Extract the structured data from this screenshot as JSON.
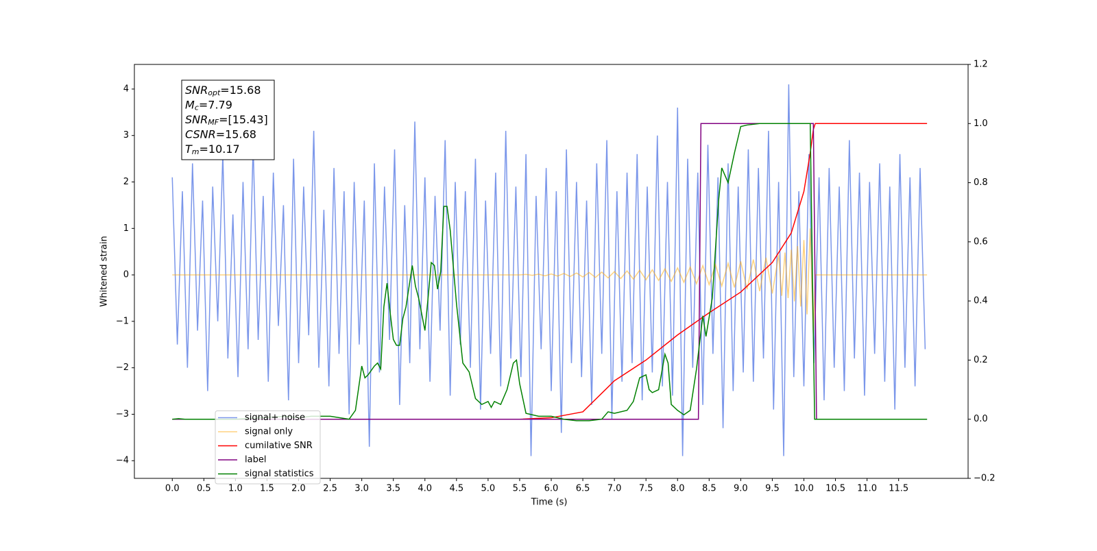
{
  "chart_data": {
    "type": "line",
    "xlabel": "Time (s)",
    "ylabel": "Whitened strain",
    "xlim": [
      -0.6,
      12.6
    ],
    "ylim": [
      -4.38,
      4.53
    ],
    "y2lim": [
      -0.2,
      1.2
    ],
    "xticks": [
      {
        "value": 0,
        "label": "0.0"
      },
      {
        "value": 0.5,
        "label": "0.5"
      },
      {
        "value": 1,
        "label": "1.0"
      },
      {
        "value": 1.5,
        "label": "1.5"
      },
      {
        "value": 2,
        "label": "2.0"
      },
      {
        "value": 2.5,
        "label": "2.5"
      },
      {
        "value": 3,
        "label": "3.0"
      },
      {
        "value": 3.5,
        "label": "3.5"
      },
      {
        "value": 4,
        "label": "4.0"
      },
      {
        "value": 4.5,
        "label": "4.5"
      },
      {
        "value": 5,
        "label": "5.0"
      },
      {
        "value": 5.5,
        "label": "5.5"
      },
      {
        "value": 6,
        "label": "6.0"
      },
      {
        "value": 6.5,
        "label": "6.5"
      },
      {
        "value": 7,
        "label": "7.0"
      },
      {
        "value": 7.5,
        "label": "7.5"
      },
      {
        "value": 8,
        "label": "8.0"
      },
      {
        "value": 8.5,
        "label": "8.5"
      },
      {
        "value": 9,
        "label": "9.0"
      },
      {
        "value": 9.5,
        "label": "9.5"
      },
      {
        "value": 10,
        "label": "10.0"
      },
      {
        "value": 10.5,
        "label": "10.5"
      },
      {
        "value": 11,
        "label": "11.0"
      },
      {
        "value": 11.5,
        "label": "11.5"
      }
    ],
    "yticks": [
      {
        "value": -4,
        "label": "−4"
      },
      {
        "value": -3,
        "label": "−3"
      },
      {
        "value": -2,
        "label": "−2"
      },
      {
        "value": -1,
        "label": "−1"
      },
      0,
      1,
      2,
      3,
      4
    ],
    "y2ticks": [
      {
        "value": -0.2,
        "label": "−0.2"
      },
      {
        "value": 0,
        "label": "0.0"
      },
      {
        "value": 0.2,
        "label": "0.2"
      },
      {
        "value": 0.4,
        "label": "0.4"
      },
      {
        "value": 0.6,
        "label": "0.6"
      },
      {
        "value": 0.8,
        "label": "0.8"
      },
      {
        "value": 1,
        "label": "1.0"
      },
      {
        "value": 1.2,
        "label": "1.2"
      }
    ],
    "legend": "lower left",
    "annotation": [
      {
        "text": "SNR",
        "sub": "opt",
        "rest": "=15.68"
      },
      {
        "text": "M",
        "sub": "c",
        "rest": "=7.79"
      },
      {
        "text": "SNR",
        "sub": "MF",
        "rest": "=[15.43]"
      },
      {
        "text": "CSNR",
        "sub": null,
        "rest": "=15.68"
      },
      {
        "text": "T",
        "sub": "m",
        "rest": "=10.17"
      }
    ],
    "series": [
      {
        "name": "signal+ noise",
        "color": "#4169e1",
        "alpha": 0.7,
        "x": [
          0,
          0.08,
          0.16,
          0.24,
          0.32,
          0.4,
          0.48,
          0.56,
          0.64,
          0.72,
          0.8,
          0.88,
          0.96,
          1.04,
          1.12,
          1.2,
          1.28,
          1.36,
          1.44,
          1.52,
          1.6,
          1.68,
          1.76,
          1.84,
          1.92,
          2,
          2.08,
          2.16,
          2.24,
          2.32,
          2.4,
          2.48,
          2.56,
          2.64,
          2.72,
          2.8,
          2.88,
          2.96,
          3.04,
          3.12,
          3.2,
          3.28,
          3.36,
          3.44,
          3.52,
          3.6,
          3.68,
          3.76,
          3.84,
          3.92,
          4,
          4.08,
          4.16,
          4.24,
          4.32,
          4.4,
          4.48,
          4.56,
          4.64,
          4.72,
          4.8,
          4.88,
          4.96,
          5.04,
          5.12,
          5.2,
          5.28,
          5.36,
          5.44,
          5.52,
          5.6,
          5.68,
          5.76,
          5.84,
          5.92,
          6,
          6.08,
          6.16,
          6.24,
          6.32,
          6.4,
          6.48,
          6.56,
          6.64,
          6.72,
          6.8,
          6.88,
          6.96,
          7.04,
          7.12,
          7.2,
          7.28,
          7.36,
          7.44,
          7.52,
          7.6,
          7.68,
          7.76,
          7.84,
          7.92,
          8,
          8.08,
          8.16,
          8.24,
          8.32,
          8.4,
          8.48,
          8.56,
          8.64,
          8.72,
          8.8,
          8.88,
          8.96,
          9.04,
          9.12,
          9.2,
          9.28,
          9.36,
          9.44,
          9.52,
          9.6,
          9.68,
          9.76,
          9.84,
          9.92,
          10,
          10.08,
          10.16,
          10.24,
          10.32,
          10.4,
          10.48,
          10.56,
          10.64,
          10.72,
          10.8,
          10.88,
          10.96,
          11.04,
          11.12,
          11.2,
          11.28,
          11.36,
          11.44,
          11.52,
          11.6,
          11.68,
          11.76,
          11.84,
          11.92
        ],
        "values": [
          2.1,
          -1.5,
          1.8,
          -2.0,
          2.4,
          -1.2,
          1.6,
          -2.5,
          1.9,
          -1.0,
          2.6,
          -1.8,
          1.3,
          -2.2,
          2.0,
          -1.6,
          2.8,
          -1.4,
          1.7,
          -2.3,
          2.2,
          -1.1,
          1.5,
          -2.7,
          2.5,
          -1.9,
          1.9,
          -1.3,
          3.1,
          -2.0,
          1.4,
          -2.4,
          2.3,
          -1.7,
          1.8,
          -3.0,
          2.0,
          -1.5,
          1.6,
          -3.7,
          2.4,
          -2.1,
          1.9,
          -1.4,
          2.7,
          -2.8,
          1.5,
          -1.9,
          3.3,
          -1.6,
          2.1,
          -2.3,
          1.7,
          -1.2,
          2.9,
          -2.6,
          2.0,
          -1.5,
          1.8,
          -2.0,
          2.5,
          -2.9,
          1.6,
          -1.7,
          2.2,
          -2.4,
          3.1,
          -1.8,
          1.9,
          -2.2,
          2.6,
          -3.9,
          1.7,
          -1.6,
          2.3,
          -2.5,
          1.8,
          -3.4,
          2.7,
          -1.9,
          2.0,
          -2.2,
          1.6,
          -2.8,
          2.4,
          -1.7,
          2.9,
          -3.1,
          1.8,
          -2.3,
          2.2,
          -1.9,
          2.6,
          -2.7,
          1.9,
          -2.1,
          3.0,
          -2.4,
          2.0,
          -2.6,
          3.6,
          -3.9,
          2.5,
          -2.0,
          2.2,
          -2.8,
          2.8,
          -1.7,
          2.1,
          -3.3,
          2.4,
          -2.5,
          1.9,
          -2.1,
          2.7,
          -2.3,
          2.3,
          -1.8,
          3.1,
          -2.9,
          2.0,
          -3.9,
          4.1,
          -2.2,
          1.8,
          -2.4,
          2.6,
          -1.9,
          2.1,
          -2.7,
          2.3,
          -2.0,
          1.9,
          -2.5,
          2.9,
          -1.8,
          2.2,
          -2.6,
          2.0,
          -1.7,
          2.4,
          -2.3,
          1.9,
          -2.9,
          2.6,
          -2.0,
          2.1,
          -2.4,
          2.3,
          -1.6
        ]
      },
      {
        "name": "signal only",
        "color": "#ffa500",
        "alpha": 0.5,
        "x": [
          0,
          5.5,
          5.6,
          5.7,
          5.8,
          5.9,
          6,
          6.1,
          6.2,
          6.3,
          6.4,
          6.5,
          6.6,
          6.7,
          6.8,
          6.9,
          7,
          7.1,
          7.2,
          7.3,
          7.4,
          7.5,
          7.6,
          7.7,
          7.8,
          7.9,
          8,
          8.1,
          8.2,
          8.3,
          8.4,
          8.5,
          8.6,
          8.7,
          8.8,
          8.9,
          9,
          9.1,
          9.2,
          9.3,
          9.4,
          9.5,
          9.6,
          9.65,
          9.7,
          9.75,
          9.8,
          9.85,
          9.9,
          9.95,
          10,
          10.05,
          10.1,
          10.15,
          10.18,
          11.95
        ],
        "values": [
          0,
          0,
          0.01,
          -0.01,
          0.015,
          -0.02,
          0.02,
          -0.025,
          0.03,
          -0.035,
          0.04,
          -0.045,
          0.05,
          -0.055,
          0.06,
          -0.065,
          0.07,
          -0.08,
          0.085,
          -0.09,
          0.1,
          -0.105,
          0.11,
          -0.12,
          0.13,
          -0.14,
          0.15,
          -0.16,
          0.17,
          -0.19,
          0.2,
          -0.21,
          0.22,
          -0.24,
          0.25,
          -0.27,
          0.29,
          -0.31,
          0.33,
          -0.35,
          0.37,
          -0.4,
          0.43,
          -0.45,
          0.48,
          -0.5,
          0.54,
          -0.57,
          0.62,
          -0.68,
          0.75,
          -0.85,
          1.0,
          -1.3,
          0,
          0
        ]
      },
      {
        "name": "cumilative SNR",
        "color": "#ff0000",
        "axis": "y2",
        "x": [
          0,
          5.5,
          6,
          6.5,
          7,
          7.5,
          8,
          8.5,
          9,
          9.5,
          9.8,
          10,
          10.1,
          10.15,
          10.18,
          11.95
        ],
        "values": [
          0,
          0,
          0.005,
          0.025,
          0.13,
          0.2,
          0.285,
          0.36,
          0.43,
          0.53,
          0.63,
          0.77,
          0.9,
          0.98,
          1,
          1
        ]
      },
      {
        "name": "label",
        "color": "#800080",
        "axis": "y2",
        "x": [
          0,
          8.33,
          8.37,
          10.15,
          10.2,
          11.95
        ],
        "values": [
          0,
          0,
          1,
          1,
          0,
          0
        ]
      },
      {
        "name": "signal statistics",
        "color": "#008000",
        "axis": "y2",
        "x": [
          0,
          0.1,
          0.2,
          1,
          1.8,
          2,
          2.2,
          2.4,
          2.5,
          2.8,
          2.9,
          3,
          3.05,
          3.1,
          3.2,
          3.25,
          3.3,
          3.35,
          3.4,
          3.45,
          3.5,
          3.55,
          3.6,
          3.65,
          3.7,
          3.8,
          3.85,
          3.9,
          4,
          4.05,
          4.1,
          4.15,
          4.2,
          4.25,
          4.3,
          4.35,
          4.4,
          4.5,
          4.6,
          4.7,
          4.8,
          4.9,
          5,
          5.05,
          5.1,
          5.2,
          5.3,
          5.4,
          5.45,
          5.5,
          5.6,
          5.8,
          6,
          6.2,
          6.4,
          6.6,
          6.8,
          6.9,
          7,
          7.2,
          7.3,
          7.4,
          7.5,
          7.55,
          7.6,
          7.7,
          7.8,
          7.85,
          7.9,
          8,
          8.1,
          8.2,
          8.3,
          8.4,
          8.45,
          8.55,
          8.65,
          8.7,
          8.8,
          8.9,
          9,
          9.1,
          9.3,
          9.5,
          10.1,
          10.17,
          10.3,
          11.95
        ],
        "values": [
          0,
          0.002,
          0,
          0,
          0.01,
          0.005,
          0.01,
          0.01,
          0.01,
          0,
          0.03,
          0.18,
          0.14,
          0.15,
          0.18,
          0.19,
          0.17,
          0.38,
          0.46,
          0.36,
          0.27,
          0.25,
          0.25,
          0.34,
          0.38,
          0.52,
          0.45,
          0.41,
          0.3,
          0.41,
          0.53,
          0.52,
          0.44,
          0.5,
          0.72,
          0.72,
          0.64,
          0.39,
          0.19,
          0.16,
          0.07,
          0.05,
          0.06,
          0.04,
          0.06,
          0.05,
          0.1,
          0.19,
          0.2,
          0.12,
          0.02,
          0.01,
          0.01,
          0,
          -0.005,
          -0.005,
          0,
          0.025,
          0.02,
          0.03,
          0.06,
          0.14,
          0.15,
          0.1,
          0.09,
          0.1,
          0.22,
          0.19,
          0.05,
          0.03,
          0.015,
          0.03,
          0.17,
          0.35,
          0.28,
          0.41,
          0.74,
          0.85,
          0.8,
          0.9,
          0.99,
          0.995,
          1,
          1,
          1,
          0,
          0,
          0
        ]
      }
    ]
  }
}
